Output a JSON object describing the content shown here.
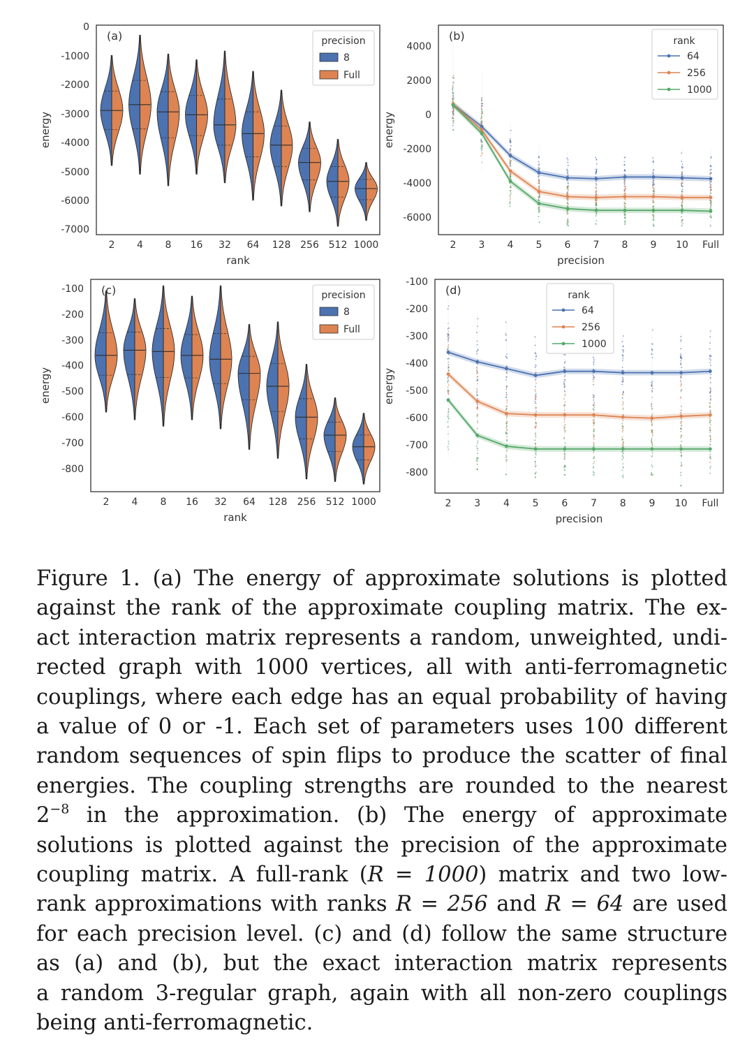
{
  "colors": {
    "blue": "#4c72b0",
    "orange": "#dd8452",
    "green": "#55a868",
    "axis": "#333333"
  },
  "chart_data": [
    {
      "panel": "(a)",
      "type": "violin",
      "xlabel": "rank",
      "ylabel": "energy",
      "categories": [
        "2",
        "4",
        "8",
        "16",
        "32",
        "64",
        "128",
        "256",
        "512",
        "1000"
      ],
      "yticks": [
        "0",
        "-1000",
        "-2000",
        "-3000",
        "-4000",
        "-5000",
        "-6000",
        "-7000"
      ],
      "ylim": [
        -7200,
        0
      ],
      "legend": {
        "title": "precision",
        "entries": [
          "8",
          "Full"
        ],
        "placement": "top-right"
      },
      "series": [
        {
          "name": "8",
          "median": [
            -2900,
            -2700,
            -2950,
            -3050,
            -3400,
            -3700,
            -4100,
            -4700,
            -5350,
            -5600
          ]
        },
        {
          "name": "Full",
          "median": [
            -2900,
            -2700,
            -2950,
            -3050,
            -3400,
            -3700,
            -4100,
            -4700,
            -5350,
            -5600
          ]
        }
      ],
      "range": [
        [
          -4800,
          -1000
        ],
        [
          -5100,
          -300
        ],
        [
          -5500,
          -950
        ],
        [
          -5100,
          -1150
        ],
        [
          -5400,
          -850
        ],
        [
          -6000,
          -1550
        ],
        [
          -6200,
          -2200
        ],
        [
          -6400,
          -3300
        ],
        [
          -6900,
          -3900
        ],
        [
          -6700,
          -4700
        ]
      ]
    },
    {
      "panel": "(b)",
      "type": "line",
      "xlabel": "precision",
      "ylabel": "energy",
      "x": [
        "2",
        "3",
        "4",
        "5",
        "6",
        "7",
        "8",
        "9",
        "10",
        "Full"
      ],
      "yticks": [
        "4000",
        "2000",
        "0",
        "-2000",
        "-4000",
        "-6000"
      ],
      "ylim": [
        -7000,
        4700
      ],
      "legend": {
        "title": "rank",
        "entries": [
          "64",
          "256",
          "1000"
        ],
        "placement": "top-right"
      },
      "series": [
        {
          "name": "64",
          "values": [
            600,
            -700,
            -2400,
            -3400,
            -3700,
            -3750,
            -3650,
            -3650,
            -3700,
            -3750
          ]
        },
        {
          "name": "256",
          "values": [
            600,
            -900,
            -3300,
            -4500,
            -4800,
            -4850,
            -4800,
            -4800,
            -4850,
            -4850
          ]
        },
        {
          "name": "1000",
          "values": [
            550,
            -1100,
            -3900,
            -5200,
            -5500,
            -5600,
            -5600,
            -5600,
            -5600,
            -5650
          ]
        }
      ],
      "scatter_range": [
        [
          -1100,
          4300
        ],
        [
          -3300,
          2500
        ],
        [
          -5500,
          -500
        ],
        [
          -6300,
          -1800
        ],
        [
          -6500,
          -2200
        ],
        [
          -6500,
          -2500
        ],
        [
          -6400,
          -2500
        ],
        [
          -6500,
          -2400
        ],
        [
          -6500,
          -2000
        ],
        [
          -6500,
          -2000
        ]
      ]
    },
    {
      "panel": "(c)",
      "type": "violin",
      "xlabel": "rank",
      "ylabel": "energy",
      "categories": [
        "2",
        "4",
        "8",
        "16",
        "32",
        "64",
        "128",
        "256",
        "512",
        "1000"
      ],
      "yticks": [
        "-100",
        "-200",
        "-300",
        "-400",
        "-500",
        "-600",
        "-700",
        "-800"
      ],
      "ylim": [
        -890,
        -80
      ],
      "legend": {
        "title": "precision",
        "entries": [
          "8",
          "Full"
        ],
        "placement": "top-right"
      },
      "series": [
        {
          "name": "8",
          "median": [
            -360,
            -340,
            -345,
            -360,
            -375,
            -430,
            -480,
            -600,
            -670,
            -715
          ]
        },
        {
          "name": "Full",
          "median": [
            -360,
            -340,
            -345,
            -360,
            -375,
            -430,
            -480,
            -600,
            -670,
            -715
          ]
        }
      ],
      "range": [
        [
          -580,
          -110
        ],
        [
          -610,
          -140
        ],
        [
          -635,
          -90
        ],
        [
          -610,
          -130
        ],
        [
          -645,
          -90
        ],
        [
          -725,
          -240
        ],
        [
          -760,
          -230
        ],
        [
          -840,
          -395
        ],
        [
          -850,
          -525
        ],
        [
          -860,
          -585
        ]
      ]
    },
    {
      "panel": "(d)",
      "type": "line",
      "xlabel": "precision",
      "ylabel": "energy",
      "x": [
        "2",
        "3",
        "4",
        "5",
        "6",
        "7",
        "8",
        "9",
        "10",
        "Full"
      ],
      "yticks": [
        "-100",
        "-200",
        "-300",
        "-400",
        "-500",
        "-600",
        "-700",
        "-800"
      ],
      "ylim": [
        -880,
        -90
      ],
      "legend": {
        "title": "rank",
        "entries": [
          "64",
          "256",
          "1000"
        ],
        "placement": "top-center"
      },
      "series": [
        {
          "name": "64",
          "values": [
            -360,
            -395,
            -420,
            -445,
            -430,
            -430,
            -435,
            -435,
            -435,
            -430
          ]
        },
        {
          "name": "256",
          "values": [
            -440,
            -540,
            -585,
            -590,
            -590,
            -590,
            -598,
            -602,
            -595,
            -590
          ]
        },
        {
          "name": "1000",
          "values": [
            -535,
            -665,
            -705,
            -715,
            -715,
            -715,
            -715,
            -715,
            -715,
            -715
          ]
        }
      ],
      "scatter_range": [
        [
          -750,
          -150
        ],
        [
          -790,
          -220
        ],
        [
          -810,
          -250
        ],
        [
          -820,
          -300
        ],
        [
          -810,
          -300
        ],
        [
          -810,
          -290
        ],
        [
          -820,
          -300
        ],
        [
          -810,
          -270
        ],
        [
          -850,
          -290
        ],
        [
          -810,
          -280
        ]
      ]
    }
  ],
  "caption": {
    "label": "Figure 1.",
    "lines": [
      "(a) The energy of approximate solutions is plotted",
      "against the rank of the approximate coupling matrix.  The ex-",
      "act interaction matrix represents a random, unweighted, undi-",
      "rected graph with 1000 vertices, all with anti-ferromagnetic",
      "couplings, where each edge has an equal probability of having",
      "a value of 0 or -1.  Each set of parameters uses 100 different",
      "random sequences of spin flips to produce the scatter of final",
      "energies.  The coupling strengths are rounded to the nearest",
      "in the approximation.  (b) The energy of approximate",
      "solutions is plotted against the precision of the approximate",
      "coupling matrix. A full-rank (",
      ") matrix and two low-",
      "rank approximations with ranks ",
      " and ",
      " are used",
      "for each precision level. (c) and (d) follow the same structure",
      "as (a) and (b), but the exact interaction matrix represents",
      "a random 3-regular graph, again with all non-zero couplings",
      "being anti-ferromagnetic."
    ],
    "math": {
      "pow_base": "2",
      "pow_exp": "−8",
      "r_full": "R = 1000",
      "r_256": "R = 256",
      "r_64": "R = 64"
    }
  }
}
